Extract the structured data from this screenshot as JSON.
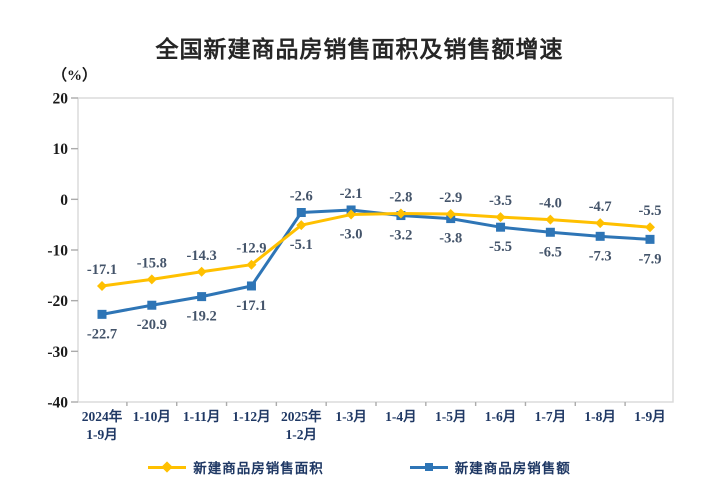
{
  "chart_data": {
    "type": "line",
    "title": "全国新建商品房销售面积及销售额增速",
    "unit_label": "（%）",
    "categories": [
      "2024年\n1-9月",
      "1-10月",
      "1-11月",
      "1-12月",
      "2025年\n1-2月",
      "1-3月",
      "1-4月",
      "1-5月",
      "1-6月",
      "1-7月",
      "1-8月",
      "1-9月"
    ],
    "series": [
      {
        "name": "新建商品房销售面积",
        "color": "#FFC000",
        "marker": "diamond",
        "values": [
          -17.1,
          -15.8,
          -14.3,
          -12.9,
          -5.1,
          -3.0,
          -2.8,
          -2.9,
          -3.5,
          -4.0,
          -4.7,
          -5.5
        ]
      },
      {
        "name": "新建商品房销售额",
        "color": "#2E75B6",
        "marker": "square",
        "values": [
          -22.7,
          -20.9,
          -19.2,
          -17.1,
          -2.6,
          -2.1,
          -3.2,
          -3.8,
          -5.5,
          -6.5,
          -7.3,
          -7.9
        ]
      }
    ],
    "yticks": [
      20,
      10,
      0,
      -10,
      -20,
      -30,
      -40
    ],
    "ylim": [
      -40,
      20
    ],
    "grid": false,
    "data_labels": true,
    "legend_position": "bottom",
    "axis_label_color": "#1F3864",
    "ytick_label_color": "#1a1a1a",
    "data_label_color": "#44546A",
    "plot_border_color": "#D9D9D9",
    "tick_color": "#ABABAB"
  }
}
